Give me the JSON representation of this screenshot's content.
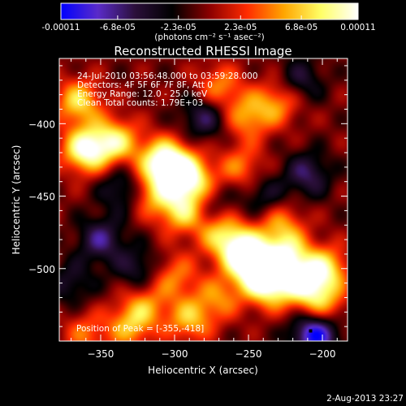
{
  "colorbar": {
    "tick_labels": [
      "-0.00011",
      "-6.8e-05",
      "-2.3e-05",
      "2.3e-05",
      "6.8e-05",
      "0.00011"
    ],
    "tick_values": [
      -0.00011,
      -6.8e-05,
      -2.3e-05,
      2.3e-05,
      6.8e-05,
      0.00011
    ],
    "range": [
      -0.00011,
      0.00011
    ],
    "units_label": "(photons cm⁻² s⁻¹ asec⁻²)",
    "colors": [
      "#0000ff",
      "#5a2bc8",
      "#2b0f3a",
      "#000000",
      "#8b0000",
      "#ff2a00",
      "#ffa500",
      "#ffff66",
      "#ffffff"
    ]
  },
  "chart_data": {
    "type": "heatmap",
    "title": "Reconstructed RHESSI Image",
    "xlabel": "Heliocentric X (arcsec)",
    "ylabel": "Heliocentric Y (arcsec)",
    "xlim": [
      -378,
      -183
    ],
    "ylim": [
      -550,
      -355
    ],
    "x_tick_values": [
      -350,
      -300,
      -250,
      -200
    ],
    "x_tick_labels": [
      "−350",
      "−300",
      "−250",
      "−200"
    ],
    "y_tick_values": [
      -400,
      -450,
      -500
    ],
    "y_tick_labels": [
      "−400",
      "−450",
      "−500"
    ],
    "info_lines": [
      "24-Jul-2010 03:56:48.000 to 03:59:28.000",
      "Detectors: 4F 5F 6F 7F 8F, Att 0",
      "Energy Range: 12.0 - 25.0 keV",
      "Clean    Total counts: 1.79E+03"
    ],
    "peak_label": "Position of Peak = [-355,-418]",
    "peak_position": [
      -355,
      -418
    ],
    "sources": [
      {
        "x": -360,
        "y": -418,
        "amp": 1.0
      },
      {
        "x": -340,
        "y": -412,
        "amp": 0.75
      },
      {
        "x": -365,
        "y": -385,
        "amp": 0.7
      },
      {
        "x": -310,
        "y": -425,
        "amp": 0.7
      },
      {
        "x": -300,
        "y": -430,
        "amp": 0.75
      },
      {
        "x": -288,
        "y": -440,
        "amp": 0.8
      },
      {
        "x": -295,
        "y": -460,
        "amp": 0.7
      },
      {
        "x": -315,
        "y": -448,
        "amp": 0.55
      },
      {
        "x": -270,
        "y": -475,
        "amp": 0.55
      },
      {
        "x": -255,
        "y": -487,
        "amp": 0.95
      },
      {
        "x": -245,
        "y": -500,
        "amp": 0.95
      },
      {
        "x": -225,
        "y": -492,
        "amp": 0.85
      },
      {
        "x": -235,
        "y": -512,
        "amp": 0.8
      },
      {
        "x": -212,
        "y": -510,
        "amp": 0.75
      },
      {
        "x": -198,
        "y": -500,
        "amp": 0.7
      },
      {
        "x": -200,
        "y": -525,
        "amp": 0.55
      },
      {
        "x": -228,
        "y": -470,
        "amp": 0.5
      },
      {
        "x": -250,
        "y": -395,
        "amp": 0.55
      },
      {
        "x": -230,
        "y": -385,
        "amp": 0.5
      },
      {
        "x": -270,
        "y": -375,
        "amp": 0.5
      },
      {
        "x": -255,
        "y": -430,
        "amp": 0.45
      },
      {
        "x": -300,
        "y": -505,
        "amp": 0.45
      },
      {
        "x": -320,
        "y": -525,
        "amp": 0.45
      },
      {
        "x": -290,
        "y": -535,
        "amp": 0.6
      },
      {
        "x": -330,
        "y": -540,
        "amp": 0.55
      },
      {
        "x": -360,
        "y": -545,
        "amp": 0.4
      },
      {
        "x": -270,
        "y": -520,
        "amp": 0.45
      },
      {
        "x": -350,
        "y": -480,
        "amp": -0.55
      },
      {
        "x": -335,
        "y": -445,
        "amp": -0.45
      },
      {
        "x": -280,
        "y": -395,
        "amp": -0.5
      },
      {
        "x": -210,
        "y": -435,
        "amp": -0.5
      },
      {
        "x": -205,
        "y": -545,
        "amp": -0.95
      },
      {
        "x": -325,
        "y": -500,
        "amp": -0.4
      },
      {
        "x": -240,
        "y": -450,
        "amp": -0.35
      },
      {
        "x": -370,
        "y": -510,
        "amp": -0.35
      },
      {
        "x": -215,
        "y": -370,
        "amp": -0.4
      },
      {
        "x": -275,
        "y": -455,
        "amp": -0.3
      }
    ]
  },
  "footer": {
    "timestamp": "2-Aug-2013 23:27"
  }
}
